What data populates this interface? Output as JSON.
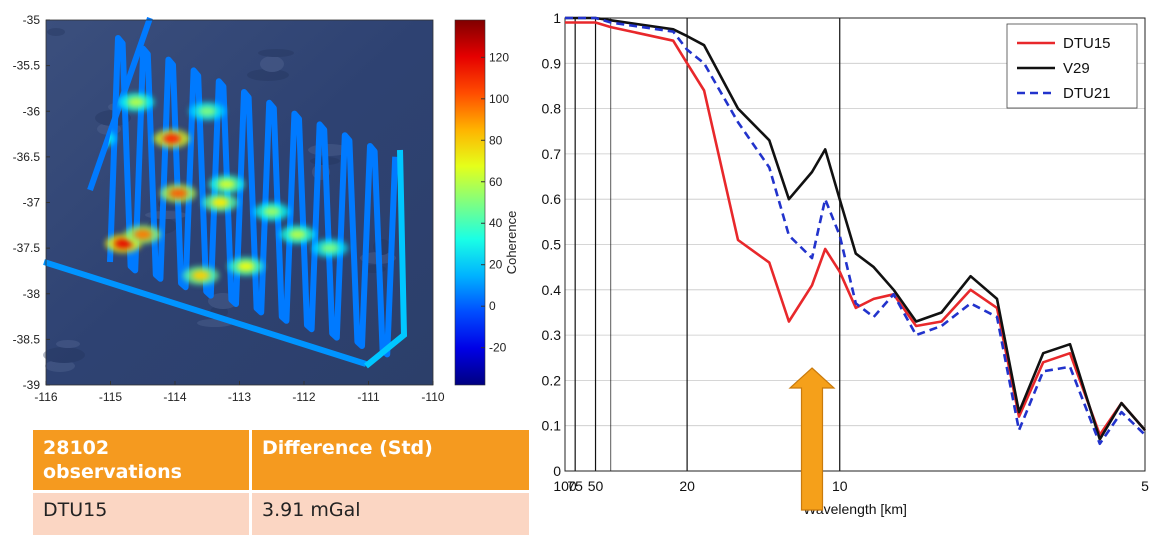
{
  "map": {
    "colorbar_label": "Coherence",
    "colorbar_ticks": [
      -20,
      0,
      20,
      40,
      60,
      80,
      100,
      120
    ],
    "colorbar_range": [
      -38,
      138
    ],
    "lon_ticks": [
      -116,
      -115,
      -114,
      -113,
      -112,
      -111,
      -110
    ],
    "lat_ticks": [
      -35,
      -35.5,
      -36,
      -36.5,
      -37,
      -37.5,
      -38,
      -38.5,
      -39
    ],
    "lon_range": [
      -116,
      -110
    ],
    "lat_range": [
      -39,
      -35
    ],
    "hotspots": [
      {
        "lon": -114.8,
        "lat": -37.45,
        "v": 120
      },
      {
        "lon": -114.5,
        "lat": -37.35,
        "v": 95
      },
      {
        "lon": -114.05,
        "lat": -36.3,
        "v": 110
      },
      {
        "lon": -113.95,
        "lat": -36.9,
        "v": 100
      },
      {
        "lon": -113.6,
        "lat": -37.8,
        "v": 80
      },
      {
        "lon": -113.3,
        "lat": -37.0,
        "v": 75
      },
      {
        "lon": -112.9,
        "lat": -37.7,
        "v": 70
      },
      {
        "lon": -112.1,
        "lat": -37.35,
        "v": 60
      },
      {
        "lon": -112.5,
        "lat": -37.1,
        "v": 55
      },
      {
        "lon": -114.6,
        "lat": -35.9,
        "v": 60
      },
      {
        "lon": -113.5,
        "lat": -36.0,
        "v": 50
      },
      {
        "lon": -111.6,
        "lat": -37.5,
        "v": 50
      },
      {
        "lon": -115.2,
        "lat": -36.3,
        "v": 55
      },
      {
        "lon": -113.2,
        "lat": -36.8,
        "v": 65
      }
    ]
  },
  "table": {
    "headers": [
      "28102 observations",
      "Difference (Std)"
    ],
    "rows": [
      [
        "DTU15",
        "3.91 mGal"
      ]
    ]
  },
  "chart_data": {
    "type": "line",
    "xlabel": "Wavelength [km]",
    "ylabel": "",
    "x_scale": "reciprocal",
    "xlim": [
      100,
      5
    ],
    "ylim": [
      0,
      1
    ],
    "x_ticks": [
      100,
      75,
      50,
      20,
      10,
      5
    ],
    "y_ticks": [
      0,
      0.1,
      0.2,
      0.3,
      0.4,
      0.5,
      0.6,
      0.7,
      0.8,
      0.9,
      1
    ],
    "vertical_lines": [
      75,
      50,
      40,
      20,
      10
    ],
    "grid": true,
    "legend": "top-right",
    "series": [
      {
        "name": "DTU15",
        "color": "#e8282b",
        "style": "solid",
        "x": [
          100,
          75,
          50,
          40,
          22,
          20,
          18,
          15,
          13,
          12,
          11,
          10.5,
          10,
          9.5,
          9,
          8.5,
          8,
          7.5,
          7,
          6.6,
          6.3,
          6,
          5.7,
          5.4,
          5.2,
          5
        ],
        "y": [
          0.99,
          0.99,
          0.99,
          0.98,
          0.95,
          0.9,
          0.84,
          0.51,
          0.46,
          0.33,
          0.41,
          0.49,
          0.44,
          0.36,
          0.38,
          0.39,
          0.32,
          0.33,
          0.4,
          0.36,
          0.12,
          0.24,
          0.26,
          0.08,
          0.15,
          0.09
        ]
      },
      {
        "name": "V29",
        "color": "#111111",
        "style": "solid",
        "x": [
          100,
          75,
          50,
          40,
          22,
          20,
          18,
          15,
          13,
          12,
          11,
          10.5,
          10,
          9.5,
          9,
          8.5,
          8,
          7.5,
          7,
          6.6,
          6.3,
          6,
          5.7,
          5.4,
          5.2,
          5
        ],
        "y": [
          1.0,
          1.0,
          1.0,
          0.995,
          0.975,
          0.96,
          0.94,
          0.8,
          0.73,
          0.6,
          0.66,
          0.71,
          0.6,
          0.48,
          0.45,
          0.4,
          0.33,
          0.35,
          0.43,
          0.38,
          0.13,
          0.26,
          0.28,
          0.07,
          0.15,
          0.09
        ]
      },
      {
        "name": "DTU21",
        "color": "#2233cc",
        "style": "dashed",
        "x": [
          100,
          75,
          50,
          40,
          22,
          20,
          18,
          15,
          13,
          12,
          11,
          10.5,
          10,
          9.5,
          9,
          8.5,
          8,
          7.5,
          7,
          6.6,
          6.3,
          6,
          5.7,
          5.4,
          5.2,
          5
        ],
        "y": [
          1.0,
          1.0,
          1.0,
          0.99,
          0.97,
          0.93,
          0.9,
          0.77,
          0.67,
          0.52,
          0.47,
          0.6,
          0.52,
          0.37,
          0.34,
          0.39,
          0.3,
          0.32,
          0.37,
          0.34,
          0.09,
          0.22,
          0.23,
          0.06,
          0.13,
          0.08
        ]
      }
    ]
  },
  "annotation": {
    "arrow_color": "#f5a01a",
    "arrow_at_km": 11
  }
}
